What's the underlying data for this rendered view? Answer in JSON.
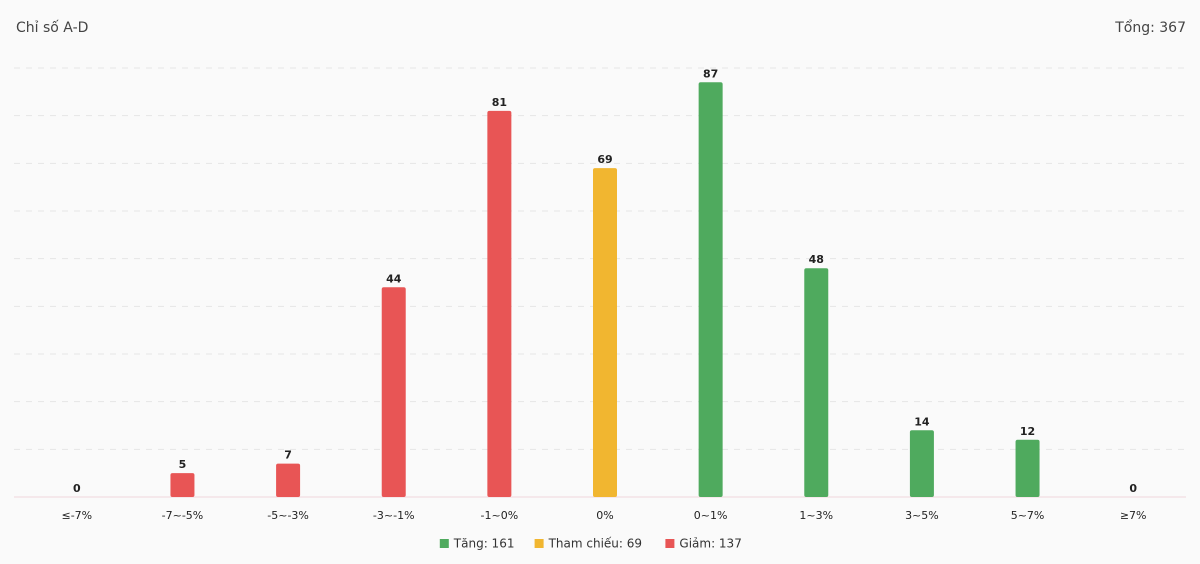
{
  "chart_data": {
    "type": "bar",
    "title": "Chỉ số A-D",
    "total_label": "Tổng: 367",
    "categories": [
      "≤-7%",
      "-7~-5%",
      "-5~-3%",
      "-3~-1%",
      "-1~0%",
      "0%",
      "0~1%",
      "1~3%",
      "3~5%",
      "5~7%",
      "≥7%"
    ],
    "values": [
      0,
      5,
      7,
      44,
      81,
      69,
      87,
      48,
      14,
      12,
      0
    ],
    "colors": [
      "#e85555",
      "#e85555",
      "#e85555",
      "#e85555",
      "#e85555",
      "#f1b630",
      "#4faa5e",
      "#4faa5e",
      "#4faa5e",
      "#4faa5e",
      "#4faa5e"
    ],
    "ylim": [
      0,
      90
    ],
    "yticks": [
      0,
      10,
      20,
      30,
      40,
      50,
      60,
      70,
      80,
      90
    ],
    "grid": true,
    "legend": [
      {
        "label": "Tăng: 161",
        "color": "#4faa5e"
      },
      {
        "label": "Tham chiếu: 69",
        "color": "#f1b630"
      },
      {
        "label": "Giảm: 137",
        "color": "#e85555"
      }
    ]
  }
}
